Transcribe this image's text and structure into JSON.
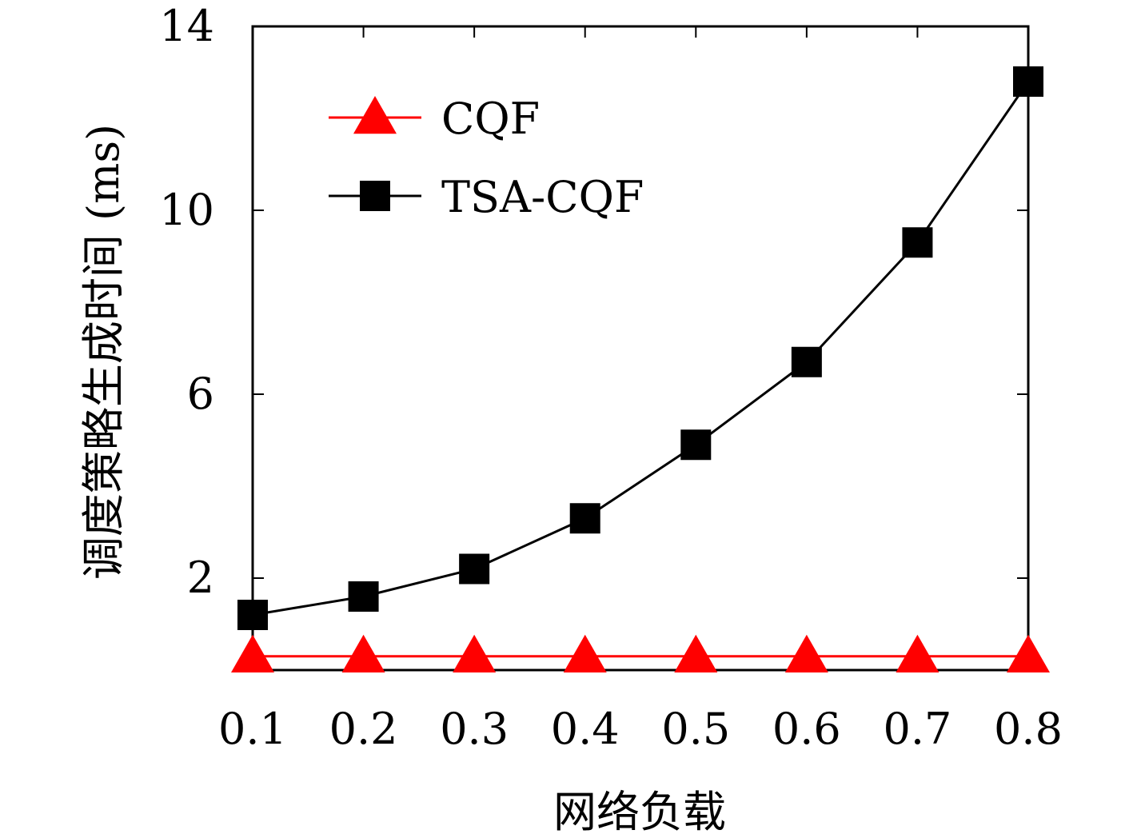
{
  "chart_data": {
    "type": "line",
    "title": "",
    "xlabel": "网络负载",
    "ylabel": "调度策略生成时间 (ms)",
    "x": [
      0.1,
      0.2,
      0.3,
      0.4,
      0.5,
      0.6,
      0.7,
      0.8
    ],
    "x_tick_labels": [
      "0.1",
      "0.2",
      "0.3",
      "0.4",
      "0.5",
      "0.6",
      "0.7",
      "0.8"
    ],
    "xlim": [
      0.1,
      0.8
    ],
    "ylim": [
      0,
      14
    ],
    "y_ticks": [
      2,
      6,
      10,
      14
    ],
    "y_tick_labels": [
      "2",
      "6",
      "10",
      "14"
    ],
    "grid": false,
    "legend_position": "top-left",
    "series": [
      {
        "name": "CQF",
        "values": [
          0.3,
          0.3,
          0.3,
          0.3,
          0.3,
          0.3,
          0.3,
          0.3
        ],
        "color": "#ff0000",
        "marker": "triangle"
      },
      {
        "name": "TSA-CQF",
        "values": [
          1.2,
          1.6,
          2.2,
          3.3,
          4.9,
          6.7,
          9.3,
          12.8
        ],
        "color": "#000000",
        "marker": "square"
      }
    ]
  }
}
